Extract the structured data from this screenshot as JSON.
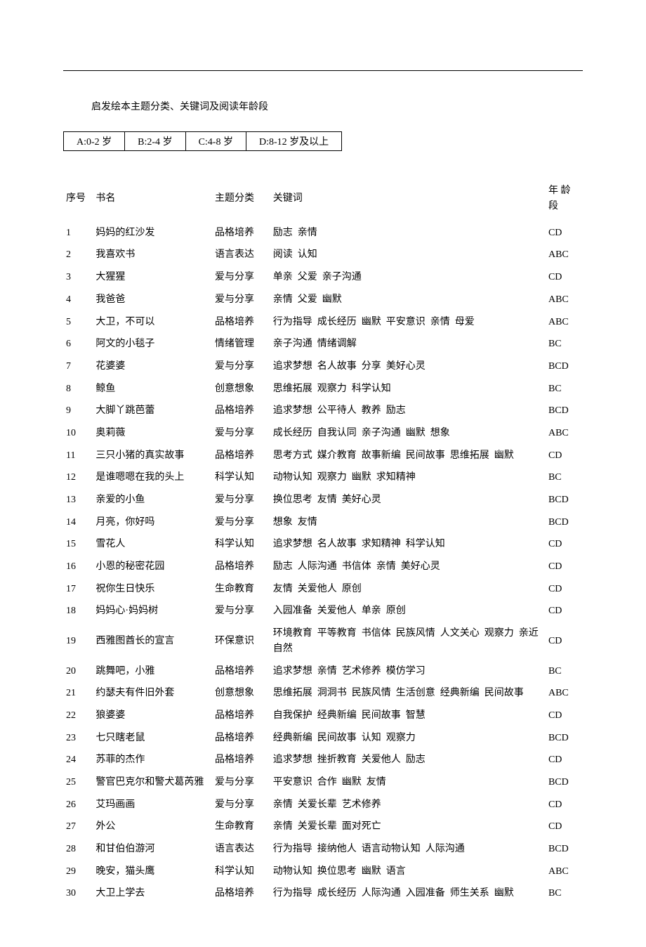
{
  "title": "启发绘本主题分类、关键词及阅读年龄段",
  "legend": {
    "a": "A:0-2 岁",
    "b": "B:2-4 岁",
    "c": "C:4-8 岁",
    "d": "D:8-12 岁及以上"
  },
  "headers": {
    "idx": "序号",
    "name": "书名",
    "cat": "主题分类",
    "kw": "关键词",
    "age": "年  龄段"
  },
  "rows": [
    {
      "idx": "1",
      "name": "妈妈的红沙发",
      "cat": "品格培养",
      "kw": [
        "励志",
        "亲情"
      ],
      "age": "CD"
    },
    {
      "idx": "2",
      "name": "我喜欢书",
      "cat": "语言表达",
      "kw": [
        "阅读",
        "认知"
      ],
      "age": "ABC"
    },
    {
      "idx": "3",
      "name": "大猩猩",
      "cat": "爱与分享",
      "kw": [
        "单亲",
        "父爱",
        "亲子沟通"
      ],
      "age": "CD"
    },
    {
      "idx": "4",
      "name": "我爸爸",
      "cat": "爱与分享",
      "kw": [
        "亲情",
        "父爱",
        "幽默"
      ],
      "age": "ABC"
    },
    {
      "idx": "5",
      "name": "大卫，不可以",
      "cat": "品格培养",
      "kw": [
        "行为指导",
        "成长经历",
        "幽默",
        "平安意识",
        "亲情",
        "母爱"
      ],
      "age": "ABC"
    },
    {
      "idx": "6",
      "name": "阿文的小毯子",
      "cat": "情绪管理",
      "kw": [
        "亲子沟通",
        "情绪调解"
      ],
      "age": "BC"
    },
    {
      "idx": "7",
      "name": "花婆婆",
      "cat": "爱与分享",
      "kw": [
        "追求梦想",
        "名人故事",
        "分享",
        "美好心灵"
      ],
      "age": "BCD"
    },
    {
      "idx": "8",
      "name": "鲸鱼",
      "cat": "创意想象",
      "kw": [
        "思维拓展",
        "观察力",
        "科学认知"
      ],
      "age": "BC"
    },
    {
      "idx": "9",
      "name": "大脚丫跳芭蕾",
      "cat": "品格培养",
      "kw": [
        "追求梦想",
        "公平待人",
        "教养",
        "励志"
      ],
      "age": "BCD"
    },
    {
      "idx": "10",
      "name": "奥莉薇",
      "cat": "爱与分享",
      "kw": [
        "成长经历",
        "自我认同",
        "亲子沟通",
        "幽默",
        "想象"
      ],
      "age": "ABC"
    },
    {
      "idx": "11",
      "name": "三只小猪的真实故事",
      "cat": "品格培养",
      "kw": [
        "思考方式",
        "媒介教育",
        "故事新编",
        "民间故事",
        "思维拓展",
        "幽默"
      ],
      "age": "CD"
    },
    {
      "idx": "12",
      "name": "是谁嗯嗯在我的头上",
      "cat": "科学认知",
      "kw": [
        "动物认知",
        "观察力",
        "幽默",
        "求知精神"
      ],
      "age": "BC"
    },
    {
      "idx": "13",
      "name": "亲爱的小鱼",
      "cat": "爱与分享",
      "kw": [
        "换位思考",
        "友情",
        "美好心灵"
      ],
      "age": "BCD"
    },
    {
      "idx": "14",
      "name": "月亮，你好吗",
      "cat": "爱与分享",
      "kw": [
        "想象",
        "友情"
      ],
      "age": "BCD"
    },
    {
      "idx": "15",
      "name": "雪花人",
      "cat": "科学认知",
      "kw": [
        "追求梦想",
        "名人故事",
        "求知精神",
        "科学认知"
      ],
      "age": "CD"
    },
    {
      "idx": "16",
      "name": "小恩的秘密花园",
      "cat": "品格培养",
      "kw": [
        "励志",
        "人际沟通",
        "书信体",
        "亲情",
        "美好心灵"
      ],
      "age": "CD"
    },
    {
      "idx": "17",
      "name": "祝你生日快乐",
      "cat": "生命教育",
      "kw": [
        "友情",
        "关爱他人",
        "原创"
      ],
      "age": "CD"
    },
    {
      "idx": "18",
      "name": "妈妈心·妈妈树",
      "cat": "爱与分享",
      "kw": [
        "入园准备",
        "关爱他人",
        "单亲",
        "原创"
      ],
      "age": "CD"
    },
    {
      "idx": "19",
      "name": "西雅图酋长的宣言",
      "cat": "环保意识",
      "kw": [
        "环境教育",
        "平等教育",
        "书信体",
        "民族风情",
        "人文关心",
        "观察力",
        "亲近自然"
      ],
      "age": "CD"
    },
    {
      "idx": "20",
      "name": "跳舞吧，小雅",
      "cat": "品格培养",
      "kw": [
        "追求梦想",
        "亲情",
        "艺术修养",
        "模仿学习"
      ],
      "age": "BC"
    },
    {
      "idx": "21",
      "name": "约瑟夫有件旧外套",
      "cat": "创意想象",
      "kw": [
        "思维拓展",
        "洞洞书",
        "民族风情",
        "生活创意",
        "经典新编",
        "民间故事"
      ],
      "age": "ABC"
    },
    {
      "idx": "22",
      "name": "狼婆婆",
      "cat": "品格培养",
      "kw": [
        "自我保护",
        "经典新编",
        "民间故事",
        "智慧"
      ],
      "age": "CD"
    },
    {
      "idx": "23",
      "name": "七只瞎老鼠",
      "cat": "品格培养",
      "kw": [
        "经典新编",
        "民间故事",
        "认知",
        "观察力"
      ],
      "age": "BCD"
    },
    {
      "idx": "24",
      "name": "苏菲的杰作",
      "cat": "品格培养",
      "kw": [
        "追求梦想",
        "挫折教育",
        "关爱他人",
        "励志"
      ],
      "age": "CD"
    },
    {
      "idx": "25",
      "name": "警官巴克尔和警犬葛芮雅",
      "cat": "爱与分享",
      "kw": [
        "平安意识",
        "合作",
        "幽默",
        "友情"
      ],
      "age": "BCD"
    },
    {
      "idx": "26",
      "name": "艾玛画画",
      "cat": "爱与分享",
      "kw": [
        "亲情",
        "关爱长辈",
        "艺术修养"
      ],
      "age": "CD"
    },
    {
      "idx": "27",
      "name": "外公",
      "cat": "生命教育",
      "kw": [
        "亲情",
        "关爱长辈",
        "面对死亡"
      ],
      "age": "CD"
    },
    {
      "idx": "28",
      "name": "和甘伯伯游河",
      "cat": "语言表达",
      "kw": [
        "行为指导",
        "接纳他人",
        "语言动物认知",
        "人际沟通"
      ],
      "age": "BCD"
    },
    {
      "idx": "29",
      "name": "晚安，猫头鹰",
      "cat": "科学认知",
      "kw": [
        "动物认知",
        "换位思考",
        "幽默",
        "语言"
      ],
      "age": "ABC"
    },
    {
      "idx": "30",
      "name": "大卫上学去",
      "cat": "品格培养",
      "kw": [
        "行为指导",
        "成长经历",
        "人际沟通",
        "入园准备",
        "师生关系",
        "幽默"
      ],
      "age": "BC"
    }
  ]
}
